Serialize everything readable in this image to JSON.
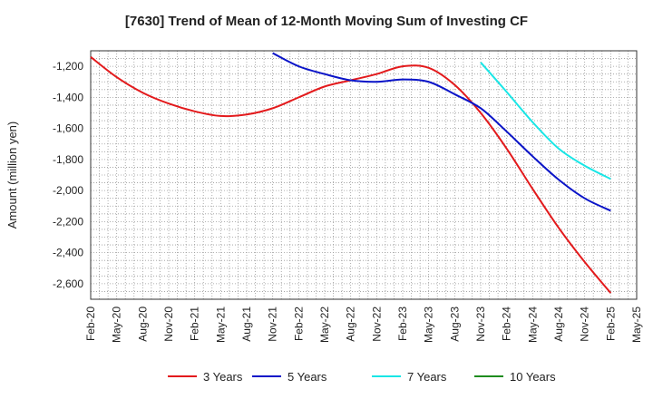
{
  "chart_data": {
    "type": "line",
    "title": "[7630]  Trend of Mean of 12-Month Moving Sum of Investing CF",
    "xlabel": "",
    "ylabel": "Amount (million yen)",
    "ylim": [
      -2700,
      -1100
    ],
    "yticks": [
      -1200,
      -1400,
      -1600,
      -1800,
      -2000,
      -2200,
      -2400,
      -2600
    ],
    "ytick_labels": [
      "-1,200",
      "-1,400",
      "-1,600",
      "-1,800",
      "-2,000",
      "-2,200",
      "-2,400",
      "-2,600"
    ],
    "x_categories": [
      "Feb-20",
      "May-20",
      "Aug-20",
      "Nov-20",
      "Feb-21",
      "May-21",
      "Aug-21",
      "Nov-21",
      "Feb-22",
      "May-22",
      "Aug-22",
      "Nov-22",
      "Feb-23",
      "May-23",
      "Aug-23",
      "Nov-23",
      "Feb-24",
      "May-24",
      "Aug-24",
      "Nov-24",
      "Feb-25",
      "May-25"
    ],
    "grid": true,
    "series": [
      {
        "name": "3 Years",
        "color": "#e31a1c",
        "points": [
          [
            0,
            -1140
          ],
          [
            1,
            -1270
          ],
          [
            2,
            -1370
          ],
          [
            3,
            -1440
          ],
          [
            4,
            -1490
          ],
          [
            5,
            -1520
          ],
          [
            6,
            -1510
          ],
          [
            7,
            -1470
          ],
          [
            8,
            -1400
          ],
          [
            9,
            -1330
          ],
          [
            10,
            -1290
          ],
          [
            11,
            -1250
          ],
          [
            12,
            -1200
          ],
          [
            13,
            -1210
          ],
          [
            14,
            -1320
          ],
          [
            15,
            -1500
          ],
          [
            16,
            -1730
          ],
          [
            17,
            -1990
          ],
          [
            18,
            -2240
          ],
          [
            19,
            -2460
          ],
          [
            20,
            -2660
          ]
        ]
      },
      {
        "name": "5 Years",
        "color": "#0a14c8",
        "points": [
          [
            7,
            -1115
          ],
          [
            8,
            -1200
          ],
          [
            9,
            -1250
          ],
          [
            10,
            -1290
          ],
          [
            11,
            -1300
          ],
          [
            12,
            -1285
          ],
          [
            13,
            -1300
          ],
          [
            14,
            -1380
          ],
          [
            15,
            -1470
          ],
          [
            16,
            -1620
          ],
          [
            17,
            -1780
          ],
          [
            18,
            -1930
          ],
          [
            19,
            -2050
          ],
          [
            20,
            -2130
          ]
        ]
      },
      {
        "name": "7 Years",
        "color": "#19e6e6",
        "points": [
          [
            15,
            -1175
          ],
          [
            16,
            -1365
          ],
          [
            17,
            -1560
          ],
          [
            18,
            -1730
          ],
          [
            19,
            -1840
          ],
          [
            20,
            -1925
          ]
        ]
      },
      {
        "name": "10 Years",
        "color": "#1e8c1e",
        "points": []
      }
    ],
    "legend_position": "bottom"
  }
}
